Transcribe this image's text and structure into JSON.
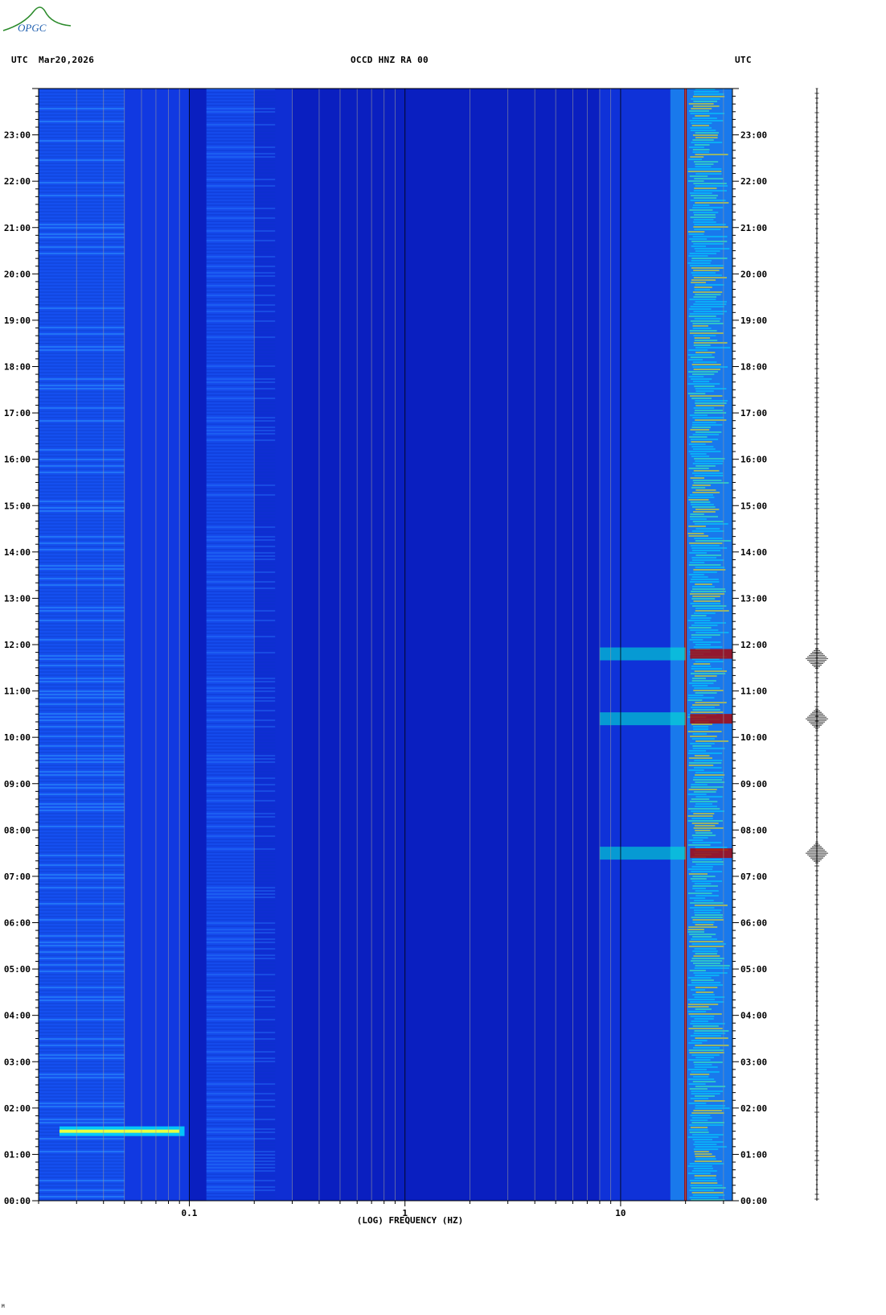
{
  "header": {
    "logo_text": "OPGC",
    "left_label": "UTC",
    "date": "Mar20,2026",
    "station": "OCCD HNZ RA 00",
    "right_label": "UTC"
  },
  "colors": {
    "background_spectrum": "#0a1fc0",
    "low_freq_band": "#1c56ff",
    "high_freq_cyan": "#00e0ff",
    "hot": "#ffee00",
    "peak_red": "#a00000",
    "grid_gray": "#9a9a9a",
    "grid_black": "#000000"
  },
  "chart_data": {
    "type": "heatmap",
    "xlabel": "(LOG) FREQUENCY (HZ)",
    "x_scale": "log",
    "xlim": [
      0.02,
      33
    ],
    "x_ticks": [
      {
        "value": 0.1,
        "label": "0.1"
      },
      {
        "value": 1,
        "label": "1"
      },
      {
        "value": 10,
        "label": "10"
      }
    ],
    "ylim_hours": [
      0,
      24
    ],
    "y_ticks_left": [
      "00:00",
      "01:00",
      "02:00",
      "03:00",
      "04:00",
      "05:00",
      "06:00",
      "07:00",
      "08:00",
      "09:00",
      "10:00",
      "11:00",
      "12:00",
      "13:00",
      "14:00",
      "15:00",
      "16:00",
      "17:00",
      "18:00",
      "19:00",
      "20:00",
      "21:00",
      "22:00",
      "23:00"
    ],
    "y_ticks_right": [
      "00:00",
      "01:00",
      "02:00",
      "03:00",
      "04:00",
      "05:00",
      "06:00",
      "07:00",
      "08:00",
      "09:00",
      "10:00",
      "11:00",
      "12:00",
      "13:00",
      "14:00",
      "15:00",
      "16:00",
      "17:00",
      "18:00",
      "19:00",
      "20:00",
      "21:00",
      "22:00",
      "23:00"
    ],
    "persistent_line_hz": 20,
    "events_hours": [
      1.5,
      7.5,
      10.4,
      11.8
    ],
    "seismogram_events_hours": [
      7.5,
      10.4,
      11.7
    ]
  },
  "footnote": "M"
}
